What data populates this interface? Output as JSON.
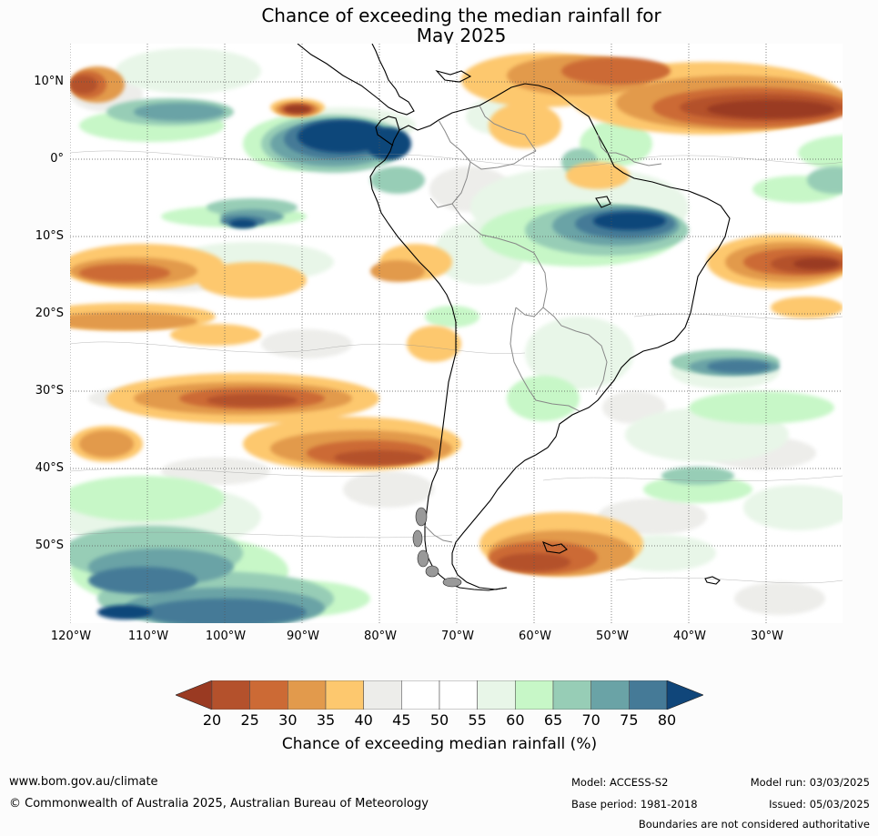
{
  "title_line1": "Chance of exceeding the median rainfall for",
  "title_line2": "May 2025",
  "map": {
    "lat_labels": [
      "10°N",
      "0°",
      "10°S",
      "20°S",
      "30°S",
      "40°S",
      "50°S"
    ],
    "lon_labels": [
      "120°W",
      "110°W",
      "100°W",
      "90°W",
      "80°W",
      "70°W",
      "60°W",
      "50°W",
      "40°W",
      "30°W"
    ],
    "extent": {
      "lon_min": -120,
      "lon_max": -20,
      "lat_min": -60,
      "lat_max": 15
    }
  },
  "colorbar": {
    "ticks": [
      "20",
      "25",
      "30",
      "35",
      "40",
      "45",
      "50",
      "55",
      "60",
      "65",
      "70",
      "75",
      "80"
    ],
    "label": "Chance of exceeding median rainfall (%)",
    "colors": [
      "#9a3a22",
      "#b4512c",
      "#cc6a35",
      "#e29a4c",
      "#fdc86e",
      "#ededea",
      "#ffffff",
      "#ffffff",
      "#e8f6e8",
      "#c7f7c7",
      "#97cdb6",
      "#6aa3a6",
      "#457a97",
      "#10467a"
    ]
  },
  "footer": {
    "url": "www.bom.gov.au/climate",
    "copyright": "© Commonwealth of Australia 2025, Australian Bureau of Meteorology",
    "model": "Model: ACCESS-S2",
    "base_period": "Base period: 1981-2018",
    "model_run": "Model run: 03/03/2025",
    "issued": "Issued: 05/03/2025",
    "disclaimer": "Boundaries are not considered authoritative"
  }
}
